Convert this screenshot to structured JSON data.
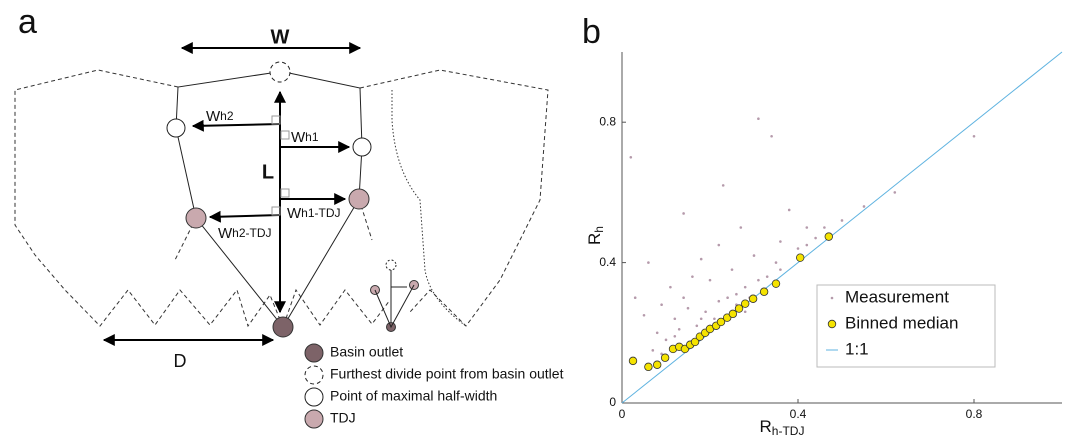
{
  "panel_labels": [
    "a",
    "b"
  ],
  "diagram": {
    "width_label": "W",
    "length_label": "L",
    "d_label": "D",
    "wh2": {
      "main": "W",
      "sub": "h2"
    },
    "wh1": {
      "main": "W",
      "sub": "h1"
    },
    "wh1_tdj": {
      "main": "W",
      "sub": "h1-TDJ"
    },
    "wh2_tdj": {
      "main": "W",
      "sub": "h2-TDJ"
    },
    "legend": [
      "Basin outlet",
      "Furthest divide point from basin outlet",
      "Point of maximal half-width",
      "TDJ"
    ]
  },
  "chart_data": {
    "type": "scatter",
    "xlabel": {
      "main": "R",
      "sub": "h-TDJ"
    },
    "ylabel": {
      "main": "R",
      "sub": "h"
    },
    "xlim": [
      0,
      1
    ],
    "ylim": [
      0,
      1
    ],
    "xticks": [
      0,
      0.4,
      0.8
    ],
    "yticks": [
      0,
      0.4,
      0.8
    ],
    "legend": "lower right",
    "series": [
      {
        "name": "Measurement",
        "color": "#b59aab",
        "marker": "dot",
        "x": [
          0.02,
          0.03,
          0.05,
          0.06,
          0.08,
          0.09,
          0.1,
          0.11,
          0.12,
          0.13,
          0.14,
          0.14,
          0.15,
          0.16,
          0.17,
          0.18,
          0.19,
          0.2,
          0.21,
          0.22,
          0.23,
          0.24,
          0.25,
          0.26,
          0.27,
          0.28,
          0.29,
          0.3,
          0.31,
          0.33,
          0.34,
          0.35,
          0.36,
          0.38,
          0.4,
          0.42,
          0.44,
          0.46,
          0.5,
          0.55,
          0.62,
          0.8,
          0.07,
          0.12,
          0.18,
          0.22,
          0.26,
          0.31,
          0.36,
          0.42,
          0.09,
          0.15,
          0.2,
          0.28
        ],
        "values": [
          0.7,
          0.3,
          0.25,
          0.4,
          0.2,
          0.28,
          0.18,
          0.33,
          0.24,
          0.21,
          0.54,
          0.3,
          0.27,
          0.36,
          0.22,
          0.41,
          0.26,
          0.35,
          0.24,
          0.45,
          0.62,
          0.3,
          0.38,
          0.28,
          0.5,
          0.33,
          0.3,
          0.42,
          0.81,
          0.36,
          0.76,
          0.4,
          0.38,
          0.55,
          0.44,
          0.45,
          0.47,
          0.5,
          0.52,
          0.56,
          0.6,
          0.76,
          0.15,
          0.19,
          0.24,
          0.29,
          0.31,
          0.35,
          0.46,
          0.5,
          0.14,
          0.17,
          0.22,
          0.26
        ]
      },
      {
        "name": "Binned median",
        "color": "#f5e300",
        "marker": "circle",
        "x": [
          0.025,
          0.06,
          0.08,
          0.098,
          0.116,
          0.13,
          0.143,
          0.155,
          0.166,
          0.177,
          0.189,
          0.2,
          0.214,
          0.225,
          0.239,
          0.252,
          0.266,
          0.28,
          0.298,
          0.323,
          0.35,
          0.405,
          0.47
        ],
        "values": [
          0.12,
          0.103,
          0.109,
          0.129,
          0.154,
          0.16,
          0.154,
          0.166,
          0.174,
          0.189,
          0.2,
          0.211,
          0.22,
          0.231,
          0.243,
          0.254,
          0.269,
          0.283,
          0.297,
          0.317,
          0.34,
          0.414,
          0.474
        ]
      },
      {
        "name": "1:1",
        "color": "#5fb3e0",
        "marker": "line",
        "x": [
          0,
          1
        ],
        "values": [
          0,
          1
        ]
      }
    ]
  }
}
